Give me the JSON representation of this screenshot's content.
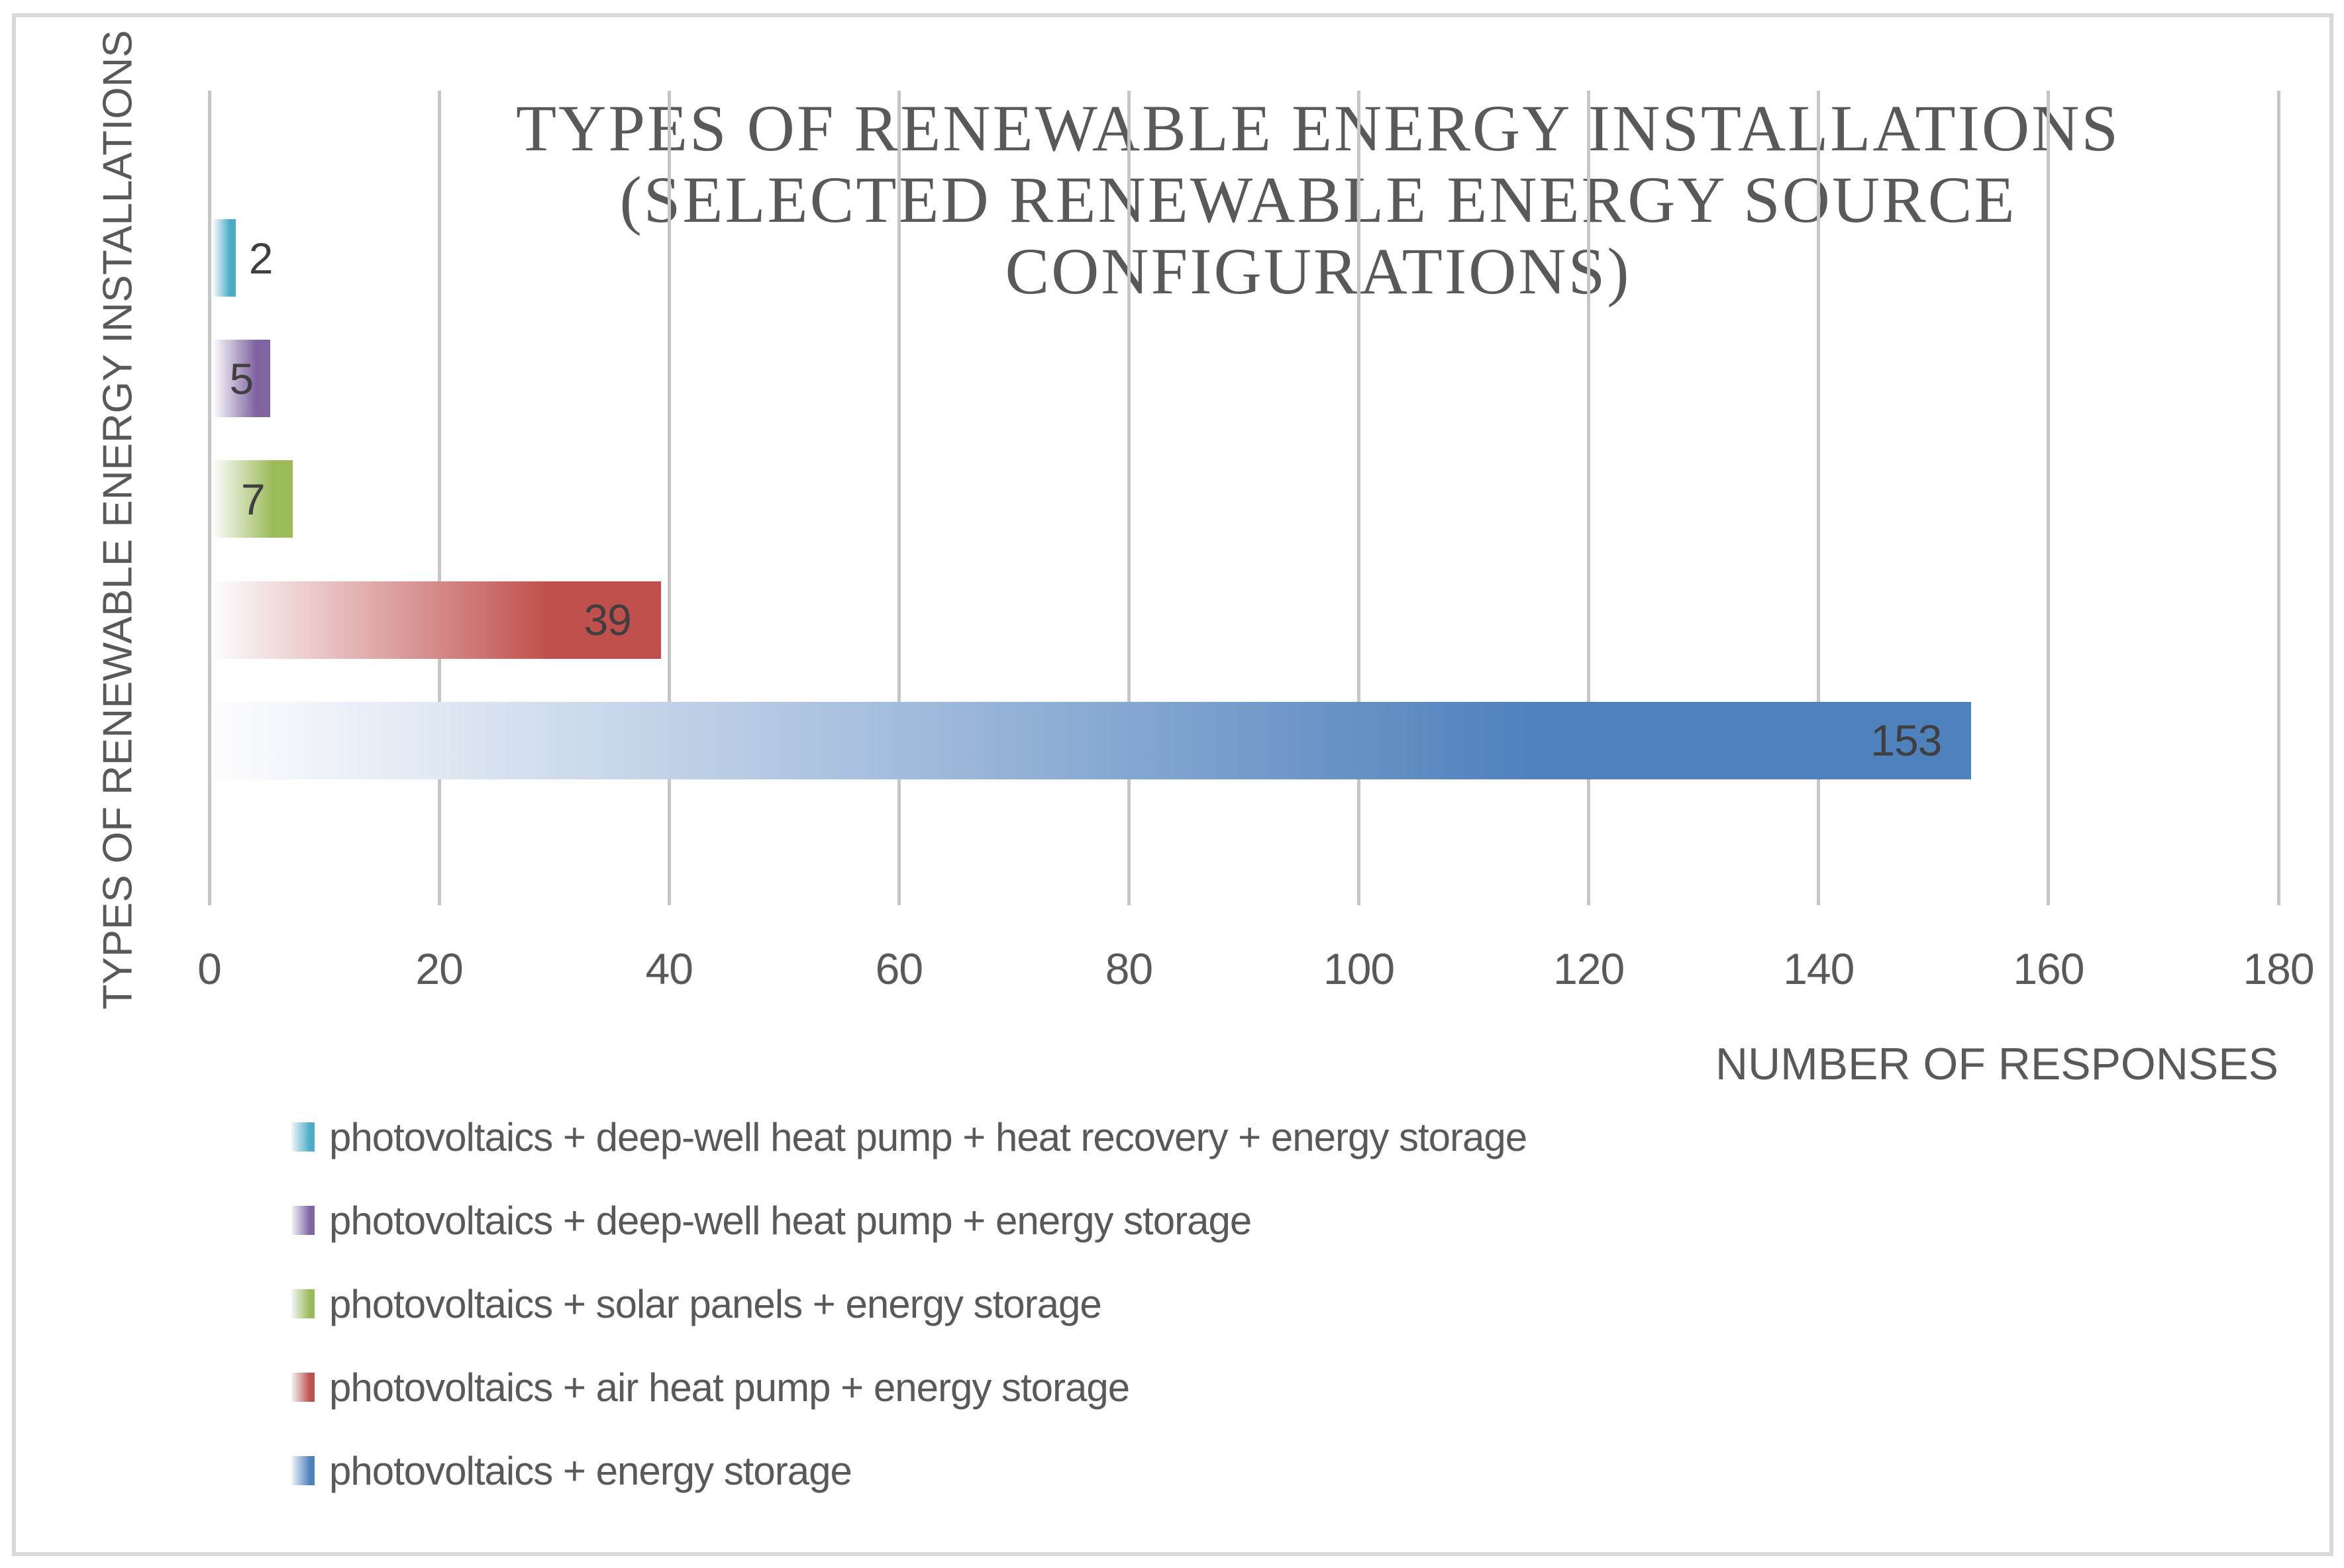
{
  "chart_data": {
    "type": "bar",
    "orientation": "horizontal",
    "title": "TYPES OF RENEWABLE ENERGY INSTALLATIONS (SELECTED RENEWABLE ENERGY SOURCE CONFIGURATIONS)",
    "title_lines": [
      "TYPES OF RENEWABLE ENERGY INSTALLATIONS",
      "(SELECTED RENEWABLE ENERGY SOURCE",
      "CONFIGURATIONS)"
    ],
    "xlabel": "NUMBER OF RESPONSES",
    "ylabel": "TYPES OF RENEWABLE ENERGY INSTALLATIONS",
    "xlim": [
      0,
      180
    ],
    "x_ticks": [
      0,
      20,
      40,
      60,
      80,
      100,
      120,
      140,
      160,
      180
    ],
    "grid": "vertical-gridlines-on",
    "legend_position": "bottom-left",
    "bar_fill_style": "horizontal gradient, white at axis to solid color at bar end",
    "series": [
      {
        "label": "photovoltaics + deep-well heat pump + heat recovery + energy storage",
        "value": 2,
        "color": "#4BACC6"
      },
      {
        "label": "photovoltaics + deep-well heat pump + energy storage",
        "value": 5,
        "color": "#8064A2"
      },
      {
        "label": "photovoltaics + solar panels + energy storage",
        "value": 7,
        "color": "#9BBB59"
      },
      {
        "label": "photovoltaics + air heat pump + energy storage",
        "value": 39,
        "color": "#C0504D"
      },
      {
        "label": "photovoltaics + energy storage",
        "value": 153,
        "color": "#4F81BD"
      }
    ],
    "colors": {
      "axis_text": "#595959",
      "data_label_text": "#3F3F3F",
      "gridline": "#C6C6C6",
      "frame_border": "#D9D9D9",
      "background": "#FFFFFF"
    }
  }
}
